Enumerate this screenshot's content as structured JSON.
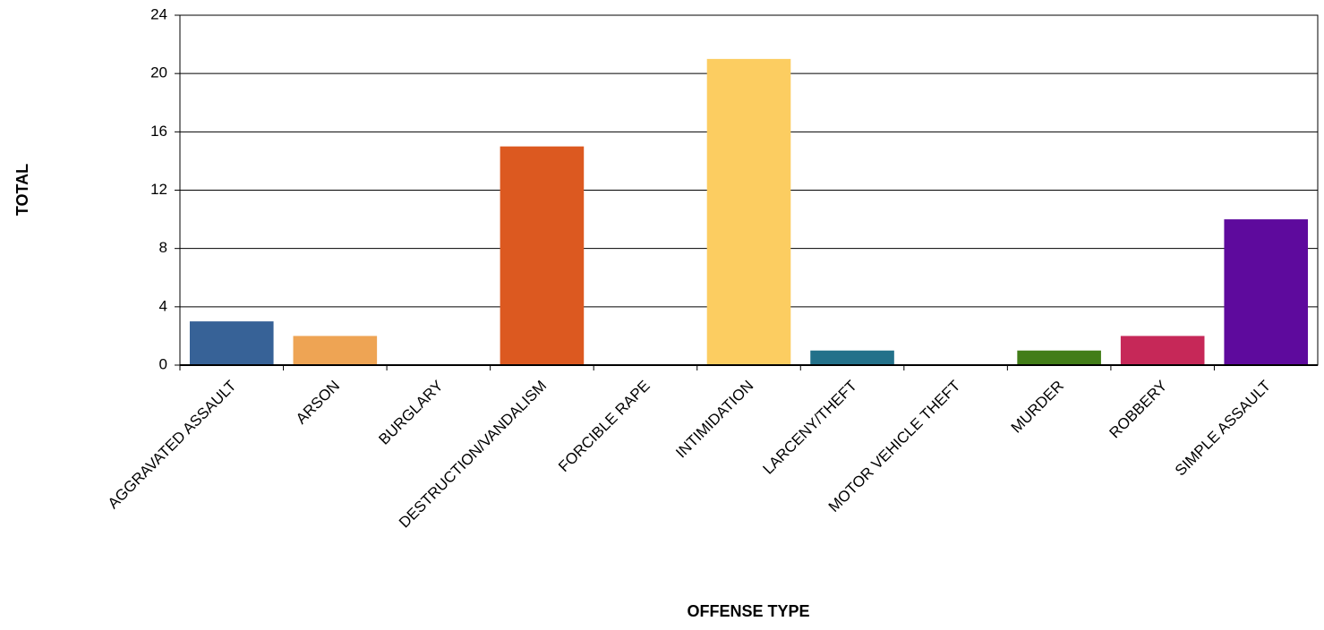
{
  "chart_data": {
    "type": "bar",
    "title": "",
    "xlabel": "OFFENSE TYPE",
    "ylabel": "TOTAL",
    "categories": [
      "AGGRAVATED ASSAULT",
      "ARSON",
      "BURGLARY",
      "DESTRUCTION/VANDALISM",
      "FORCIBLE RAPE",
      "INTIMIDATION",
      "LARCENY/THEFT",
      "MOTOR VEHICLE THEFT",
      "MURDER",
      "ROBBERY",
      "SIMPLE ASSAULT"
    ],
    "values": [
      3,
      2,
      0,
      15,
      0,
      21,
      1,
      0,
      1,
      2,
      10
    ],
    "colors": [
      "#376297",
      "#EEA454",
      "#8C8C8C",
      "#DC5920",
      "#999999",
      "#FCCD61",
      "#23718A",
      "#777777",
      "#427D18",
      "#C62858",
      "#5E0A9D"
    ],
    "ylim": [
      0,
      24
    ],
    "yticks": [
      0,
      4,
      8,
      12,
      16,
      20,
      24
    ],
    "grid": true,
    "legend": "none"
  }
}
